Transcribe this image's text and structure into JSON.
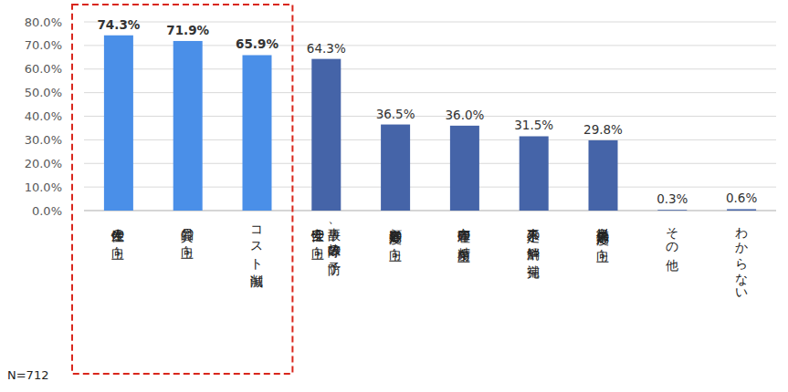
{
  "chart_data": {
    "type": "bar",
    "categories": [
      "生産性の向上",
      "品質の向上",
      "コスト削減",
      "事故、故障等の予防\n安全性の向上",
      "顧客満足度の向上",
      "在庫管理の精度向上",
      "人手不足の解消や補完",
      "従業員満足度の向上",
      "その他",
      "わからない"
    ],
    "values": [
      74.3,
      71.9,
      65.9,
      64.3,
      36.5,
      36.0,
      31.5,
      29.8,
      0.3,
      0.6
    ],
    "value_labels": [
      "74.3%",
      "71.9%",
      "65.9%",
      "64.3%",
      "36.5%",
      "36.0%",
      "31.5%",
      "29.8%",
      "0.3%",
      "0.6%"
    ],
    "colors": [
      "#4a8fe8",
      "#4a8fe8",
      "#4a8fe8",
      "#4564a8",
      "#4564a8",
      "#4564a8",
      "#4564a8",
      "#4564a8",
      "#4564a8",
      "#4564a8"
    ],
    "ylim": [
      0,
      80
    ],
    "yticks": [
      {
        "value": 0,
        "label": "0.0%"
      },
      {
        "value": 10,
        "label": "10.0%"
      },
      {
        "value": 20,
        "label": "20.0%"
      },
      {
        "value": 30,
        "label": "30.0%"
      },
      {
        "value": 40,
        "label": "40.0%"
      },
      {
        "value": 50,
        "label": "50.0%"
      },
      {
        "value": 60,
        "label": "60.0%"
      },
      {
        "value": 70,
        "label": "70.0%"
      },
      {
        "value": 80,
        "label": "80.0%"
      }
    ],
    "grid": true,
    "data_labels": true,
    "annotation": "N=712"
  }
}
